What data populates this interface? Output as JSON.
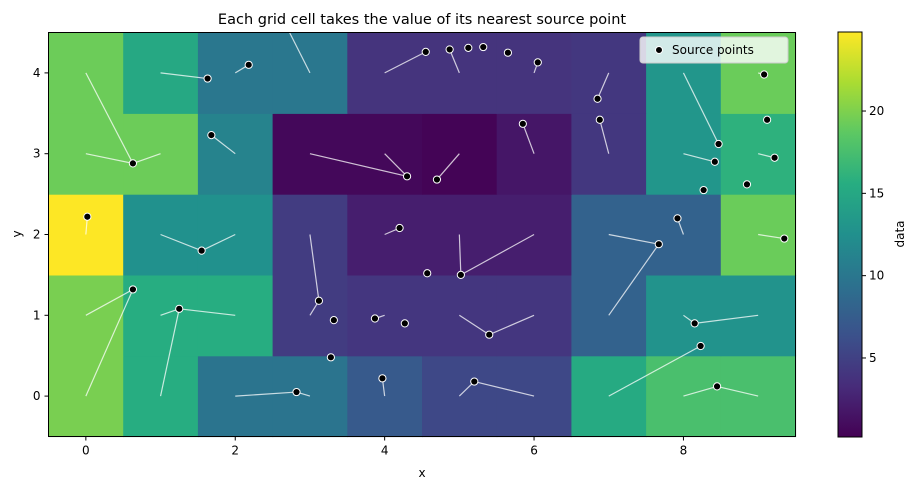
{
  "chart_data": {
    "type": "heatmap",
    "title": "Each grid cell takes the value of its nearest source point",
    "xlabel": "x",
    "ylabel": "y",
    "xlim": [
      -0.5,
      9.5
    ],
    "ylim": [
      -0.5,
      4.5
    ],
    "xticks": [
      0,
      2,
      4,
      6,
      8
    ],
    "yticks": [
      0,
      1,
      2,
      3,
      4
    ],
    "colorbar": {
      "label": "data",
      "vmin": 0.2,
      "vmax": 24.8,
      "ticks": [
        5,
        10,
        15,
        20
      ],
      "colormap": "viridis"
    },
    "legend": {
      "label": "Source points",
      "position": "upper right"
    },
    "grid": false,
    "grid_values": [
      [
        19.8,
        15.6,
        9.7,
        9.7,
        7.2,
        5.6,
        5.6,
        15.3,
        17.6,
        17.6
      ],
      [
        19.8,
        15.6,
        15.6,
        4.6,
        4.1,
        4.1,
        4.1,
        8.0,
        12.8,
        12.8
      ],
      [
        24.8,
        12.6,
        12.6,
        4.6,
        2.3,
        2.3,
        2.3,
        8.0,
        8.0,
        19.2
      ],
      [
        19.3,
        19.3,
        11.2,
        0.7,
        0.7,
        0.4,
        1.7,
        4.2,
        13.1,
        16.0
      ],
      [
        19.3,
        15.0,
        10.0,
        10.0,
        3.9,
        3.9,
        3.9,
        4.2,
        13.1,
        19.2
      ]
    ],
    "source_points": [
      {
        "x": 0.02,
        "y": 2.22
      },
      {
        "x": 0.63,
        "y": 1.32
      },
      {
        "x": 0.63,
        "y": 2.88
      },
      {
        "x": 1.25,
        "y": 1.08
      },
      {
        "x": 1.55,
        "y": 1.8
      },
      {
        "x": 1.63,
        "y": 3.93
      },
      {
        "x": 1.68,
        "y": 3.23
      },
      {
        "x": 2.18,
        "y": 4.1
      },
      {
        "x": 2.82,
        "y": 0.05
      },
      {
        "x": 3.12,
        "y": 1.18
      },
      {
        "x": 3.28,
        "y": 0.48
      },
      {
        "x": 3.32,
        "y": 0.94
      },
      {
        "x": 3.87,
        "y": 0.96
      },
      {
        "x": 3.97,
        "y": 0.22
      },
      {
        "x": 4.2,
        "y": 2.08
      },
      {
        "x": 4.27,
        "y": 0.9
      },
      {
        "x": 4.3,
        "y": 2.72
      },
      {
        "x": 4.55,
        "y": 4.26
      },
      {
        "x": 4.57,
        "y": 1.52
      },
      {
        "x": 4.87,
        "y": 4.29
      },
      {
        "x": 4.7,
        "y": 2.68
      },
      {
        "x": 5.02,
        "y": 1.5
      },
      {
        "x": 5.12,
        "y": 4.31
      },
      {
        "x": 5.2,
        "y": 0.18
      },
      {
        "x": 5.32,
        "y": 4.32
      },
      {
        "x": 5.4,
        "y": 0.76
      },
      {
        "x": 5.65,
        "y": 4.25
      },
      {
        "x": 5.85,
        "y": 3.37
      },
      {
        "x": 6.05,
        "y": 4.13
      },
      {
        "x": 6.85,
        "y": 3.68
      },
      {
        "x": 6.88,
        "y": 3.42
      },
      {
        "x": 7.67,
        "y": 1.88
      },
      {
        "x": 7.92,
        "y": 2.2
      },
      {
        "x": 8.15,
        "y": 0.9
      },
      {
        "x": 8.23,
        "y": 0.62
      },
      {
        "x": 8.27,
        "y": 2.55
      },
      {
        "x": 8.42,
        "y": 2.9
      },
      {
        "x": 8.45,
        "y": 0.12
      },
      {
        "x": 8.47,
        "y": 3.12
      },
      {
        "x": 8.85,
        "y": 2.62
      },
      {
        "x": 9.08,
        "y": 3.98
      },
      {
        "x": 9.12,
        "y": 3.42
      },
      {
        "x": 9.22,
        "y": 2.95
      },
      {
        "x": 9.35,
        "y": 1.95
      }
    ],
    "connection_lines": [
      {
        "from": [
          0.0,
          4.0
        ],
        "to": [
          0.63,
          2.88
        ]
      },
      {
        "from": [
          0.0,
          3.0
        ],
        "to": [
          0.63,
          2.88
        ]
      },
      {
        "from": [
          1.0,
          3.0
        ],
        "to": [
          0.63,
          2.88
        ]
      },
      {
        "from": [
          0.0,
          2.0
        ],
        "to": [
          0.02,
          2.22
        ]
      },
      {
        "from": [
          0.0,
          1.0
        ],
        "to": [
          0.63,
          1.32
        ]
      },
      {
        "from": [
          0.0,
          0.0
        ],
        "to": [
          0.63,
          1.32
        ]
      },
      {
        "from": [
          1.0,
          0.0
        ],
        "to": [
          1.25,
          1.08
        ]
      },
      {
        "from": [
          1.0,
          1.0
        ],
        "to": [
          1.25,
          1.08
        ]
      },
      {
        "from": [
          2.0,
          1.0
        ],
        "to": [
          1.25,
          1.08
        ]
      },
      {
        "from": [
          1.0,
          2.0
        ],
        "to": [
          1.55,
          1.8
        ]
      },
      {
        "from": [
          2.0,
          2.0
        ],
        "to": [
          1.55,
          1.8
        ]
      },
      {
        "from": [
          1.0,
          4.0
        ],
        "to": [
          1.63,
          3.93
        ]
      },
      {
        "from": [
          2.0,
          4.0
        ],
        "to": [
          2.18,
          4.1
        ]
      },
      {
        "from": [
          2.0,
          3.0
        ],
        "to": [
          1.68,
          3.23
        ]
      },
      {
        "from": [
          3.0,
          4.0
        ],
        "to": [
          2.7,
          4.55
        ]
      },
      {
        "from": [
          2.0,
          0.0
        ],
        "to": [
          2.82,
          0.05
        ]
      },
      {
        "from": [
          3.0,
          0.0
        ],
        "to": [
          2.82,
          0.05
        ]
      },
      {
        "from": [
          3.0,
          1.0
        ],
        "to": [
          3.12,
          1.18
        ]
      },
      {
        "from": [
          3.0,
          2.0
        ],
        "to": [
          3.12,
          1.18
        ]
      },
      {
        "from": [
          3.0,
          3.0
        ],
        "to": [
          4.3,
          2.72
        ]
      },
      {
        "from": [
          4.0,
          3.0
        ],
        "to": [
          4.3,
          2.72
        ]
      },
      {
        "from": [
          4.0,
          2.0
        ],
        "to": [
          4.2,
          2.08
        ]
      },
      {
        "from": [
          4.0,
          1.0
        ],
        "to": [
          3.87,
          0.96
        ]
      },
      {
        "from": [
          4.0,
          0.0
        ],
        "to": [
          3.97,
          0.22
        ]
      },
      {
        "from": [
          4.0,
          4.0
        ],
        "to": [
          4.55,
          4.26
        ]
      },
      {
        "from": [
          5.0,
          4.0
        ],
        "to": [
          4.87,
          4.29
        ]
      },
      {
        "from": [
          5.0,
          3.0
        ],
        "to": [
          4.7,
          2.68
        ]
      },
      {
        "from": [
          5.0,
          2.0
        ],
        "to": [
          5.02,
          1.5
        ]
      },
      {
        "from": [
          6.0,
          2.0
        ],
        "to": [
          5.02,
          1.5
        ]
      },
      {
        "from": [
          5.0,
          1.0
        ],
        "to": [
          5.4,
          0.76
        ]
      },
      {
        "from": [
          6.0,
          1.0
        ],
        "to": [
          5.4,
          0.76
        ]
      },
      {
        "from": [
          5.0,
          0.0
        ],
        "to": [
          5.2,
          0.18
        ]
      },
      {
        "from": [
          6.0,
          0.0
        ],
        "to": [
          5.2,
          0.18
        ]
      },
      {
        "from": [
          6.0,
          3.0
        ],
        "to": [
          5.85,
          3.37
        ]
      },
      {
        "from": [
          6.0,
          4.0
        ],
        "to": [
          6.05,
          4.13
        ]
      },
      {
        "from": [
          7.0,
          4.0
        ],
        "to": [
          6.85,
          3.68
        ]
      },
      {
        "from": [
          7.0,
          3.0
        ],
        "to": [
          6.88,
          3.42
        ]
      },
      {
        "from": [
          7.0,
          2.0
        ],
        "to": [
          7.67,
          1.88
        ]
      },
      {
        "from": [
          7.0,
          1.0
        ],
        "to": [
          7.67,
          1.88
        ]
      },
      {
        "from": [
          7.0,
          0.0
        ],
        "to": [
          8.23,
          0.62
        ]
      },
      {
        "from": [
          8.0,
          2.0
        ],
        "to": [
          7.92,
          2.2
        ]
      },
      {
        "from": [
          8.0,
          4.0
        ],
        "to": [
          8.47,
          3.12
        ]
      },
      {
        "from": [
          8.0,
          3.0
        ],
        "to": [
          8.42,
          2.9
        ]
      },
      {
        "from": [
          8.0,
          1.0
        ],
        "to": [
          8.15,
          0.9
        ]
      },
      {
        "from": [
          9.0,
          1.0
        ],
        "to": [
          8.15,
          0.9
        ]
      },
      {
        "from": [
          8.0,
          0.0
        ],
        "to": [
          8.45,
          0.12
        ]
      },
      {
        "from": [
          9.0,
          0.0
        ],
        "to": [
          8.45,
          0.12
        ]
      },
      {
        "from": [
          9.0,
          4.0
        ],
        "to": [
          9.08,
          3.98
        ]
      },
      {
        "from": [
          9.0,
          3.0
        ],
        "to": [
          9.22,
          2.95
        ]
      },
      {
        "from": [
          9.0,
          2.0
        ],
        "to": [
          9.35,
          1.95
        ]
      }
    ]
  }
}
